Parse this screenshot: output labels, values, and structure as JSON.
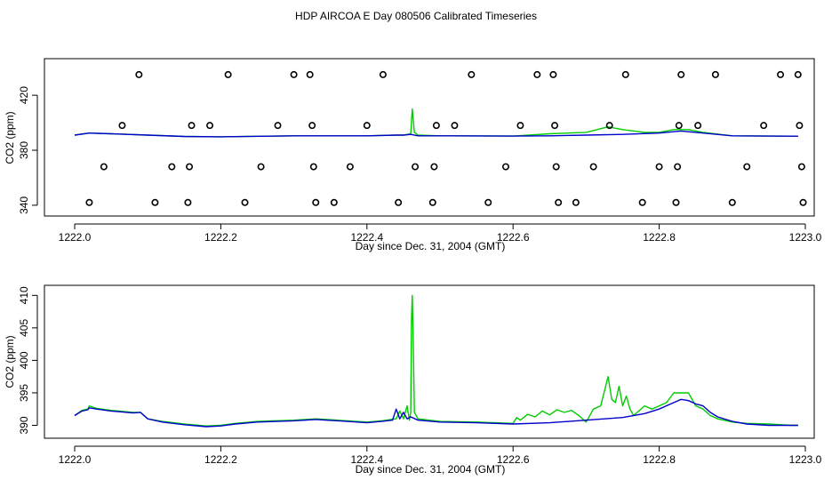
{
  "figure": {
    "title": "HDP AIRCOA E  Day 080506  Calibrated Timeseries"
  },
  "colors": {
    "series_green": "#00cc00",
    "series_blue": "#0000cc",
    "markers": "#000000",
    "axes": "#000000"
  },
  "chart_data": [
    {
      "type": "scatter",
      "xlabel": "Day since Dec. 31, 2004 (GMT)",
      "ylabel": "CO2 (ppm)",
      "xlim": [
        1222.0,
        1223.0
      ],
      "ylim": [
        338,
        444
      ],
      "xticks": [
        1222.0,
        1222.2,
        1222.4,
        1222.6,
        1222.8,
        1223.0
      ],
      "xtick_labels": [
        "1222.0",
        "1222.2",
        "1222.4",
        "1222.6",
        "1222.8",
        "1223.0"
      ],
      "yticks": [
        340,
        380,
        420
      ],
      "ytick_labels": [
        "340",
        "380",
        "420"
      ],
      "grid": false,
      "series": [
        {
          "color": "green",
          "style": "line",
          "x": [
            1222.0,
            1222.02,
            1222.05,
            1222.1,
            1222.15,
            1222.2,
            1222.3,
            1222.4,
            1222.44,
            1222.45,
            1222.46,
            1222.462,
            1222.465,
            1222.47,
            1222.5,
            1222.6,
            1222.65,
            1222.7,
            1222.73,
            1222.75,
            1222.78,
            1222.8,
            1222.82,
            1222.84,
            1222.86,
            1222.9,
            1222.95,
            1222.99
          ],
          "y": [
            391,
            392.5,
            392,
            391,
            390,
            389.8,
            390.5,
            390.5,
            391,
            391,
            392,
            410,
            393,
            391,
            390.5,
            390.3,
            392,
            393,
            397,
            395,
            393,
            393,
            395,
            395,
            393,
            390.5,
            390.3,
            390.2
          ]
        },
        {
          "color": "blue",
          "style": "line",
          "x": [
            1222.0,
            1222.02,
            1222.05,
            1222.1,
            1222.15,
            1222.2,
            1222.3,
            1222.4,
            1222.44,
            1222.45,
            1222.46,
            1222.47,
            1222.5,
            1222.6,
            1222.65,
            1222.7,
            1222.75,
            1222.8,
            1222.83,
            1222.86,
            1222.9,
            1222.95,
            1222.99
          ],
          "y": [
            391,
            392.5,
            392,
            391,
            390,
            389.8,
            390.5,
            390.5,
            391,
            391,
            391.5,
            390.5,
            390.5,
            390.3,
            390.5,
            391,
            391.5,
            392.5,
            394,
            392.5,
            390.5,
            390.3,
            390.2
          ]
        },
        {
          "color": "black",
          "style": "circle-markers",
          "x": [
            1222.02,
            1222.04,
            1222.065,
            1222.088,
            1222.11,
            1222.133,
            1222.155,
            1222.157,
            1222.16,
            1222.185,
            1222.21,
            1222.233,
            1222.255,
            1222.278,
            1222.3,
            1222.322,
            1222.325,
            1222.327,
            1222.33,
            1222.355,
            1222.377,
            1222.4,
            1222.422,
            1222.443,
            1222.466,
            1222.49,
            1222.492,
            1222.495,
            1222.52,
            1222.543,
            1222.566,
            1222.59,
            1222.61,
            1222.633,
            1222.655,
            1222.657,
            1222.659,
            1222.662,
            1222.686,
            1222.71,
            1222.732,
            1222.754,
            1222.777,
            1222.8,
            1222.823,
            1222.825,
            1222.827,
            1222.83,
            1222.853,
            1222.877,
            1222.9,
            1222.92,
            1222.943,
            1222.966,
            1222.99,
            1222.992,
            1222.995,
            1222.997
          ],
          "y": [
            342,
            368,
            398,
            435,
            342,
            368,
            342,
            368,
            398,
            398,
            435,
            342,
            368,
            398,
            435,
            435,
            398,
            368,
            342,
            342,
            368,
            398,
            435,
            342,
            368,
            342,
            368,
            398,
            398,
            435,
            342,
            368,
            398,
            435,
            435,
            398,
            368,
            342,
            342,
            368,
            398,
            435,
            342,
            368,
            342,
            368,
            398,
            435,
            398,
            435,
            342,
            368,
            398,
            435,
            435,
            398,
            368,
            342
          ]
        }
      ]
    },
    {
      "type": "line",
      "xlabel": "Day since Dec. 31, 2004 (GMT)",
      "ylabel": "CO2 (ppm)",
      "xlim": [
        1222.0,
        1223.0
      ],
      "ylim": [
        388.7,
        411.0
      ],
      "xticks": [
        1222.0,
        1222.2,
        1222.4,
        1222.6,
        1222.8,
        1223.0
      ],
      "xtick_labels": [
        "1222.0",
        "1222.2",
        "1222.4",
        "1222.6",
        "1222.8",
        "1223.0"
      ],
      "yticks": [
        390,
        395,
        400,
        405,
        410
      ],
      "ytick_labels": [
        "390",
        "395",
        "400",
        "405",
        "410"
      ],
      "grid": false,
      "series": [
        {
          "color": "green",
          "x": [
            1222.0,
            1222.01,
            1222.018,
            1222.02,
            1222.03,
            1222.05,
            1222.08,
            1222.09,
            1222.1,
            1222.12,
            1222.15,
            1222.18,
            1222.2,
            1222.22,
            1222.25,
            1222.3,
            1222.33,
            1222.36,
            1222.4,
            1222.42,
            1222.44,
            1222.445,
            1222.45,
            1222.455,
            1222.458,
            1222.46,
            1222.461,
            1222.462,
            1222.463,
            1222.465,
            1222.47,
            1222.5,
            1222.55,
            1222.6,
            1222.605,
            1222.61,
            1222.62,
            1222.63,
            1222.64,
            1222.65,
            1222.66,
            1222.67,
            1222.68,
            1222.69,
            1222.7,
            1222.71,
            1222.72,
            1222.73,
            1222.735,
            1222.74,
            1222.745,
            1222.75,
            1222.755,
            1222.76,
            1222.765,
            1222.77,
            1222.78,
            1222.79,
            1222.8,
            1222.81,
            1222.82,
            1222.825,
            1222.84,
            1222.85,
            1222.86,
            1222.87,
            1222.88,
            1222.9,
            1222.92,
            1222.95,
            1222.98,
            1222.99
          ],
          "y": [
            391.5,
            392.3,
            392.5,
            393.0,
            392.6,
            392.3,
            392.0,
            392.0,
            391.0,
            390.6,
            390.2,
            389.9,
            390.0,
            390.3,
            390.6,
            390.8,
            391.0,
            390.8,
            390.5,
            390.7,
            391.0,
            392.2,
            391.0,
            393.0,
            390.8,
            392.0,
            406.0,
            410.0,
            405.0,
            392.0,
            391.0,
            390.6,
            390.5,
            390.3,
            391.2,
            390.8,
            391.7,
            391.3,
            392.2,
            391.6,
            392.4,
            392.0,
            392.3,
            391.5,
            390.5,
            392.5,
            393.0,
            397.5,
            394.0,
            393.5,
            396.0,
            393.0,
            394.5,
            392.5,
            391.5,
            392.0,
            393.0,
            392.5,
            393.0,
            393.5,
            395.0,
            395.0,
            395.0,
            393.0,
            392.5,
            391.5,
            391.0,
            390.5,
            390.3,
            390.2,
            390.0,
            390.0
          ]
        },
        {
          "color": "blue",
          "x": [
            1222.0,
            1222.01,
            1222.018,
            1222.02,
            1222.03,
            1222.05,
            1222.08,
            1222.09,
            1222.1,
            1222.12,
            1222.15,
            1222.18,
            1222.2,
            1222.22,
            1222.25,
            1222.3,
            1222.33,
            1222.36,
            1222.4,
            1222.42,
            1222.435,
            1222.44,
            1222.445,
            1222.45,
            1222.455,
            1222.46,
            1222.47,
            1222.5,
            1222.55,
            1222.6,
            1222.65,
            1222.7,
            1222.75,
            1222.78,
            1222.8,
            1222.82,
            1222.83,
            1222.84,
            1222.85,
            1222.86,
            1222.87,
            1222.88,
            1222.9,
            1222.92,
            1222.95,
            1222.98,
            1222.99
          ],
          "y": [
            391.5,
            392.2,
            392.4,
            392.7,
            392.5,
            392.2,
            391.9,
            392.0,
            391.0,
            390.5,
            390.1,
            389.8,
            389.9,
            390.2,
            390.5,
            390.7,
            390.9,
            390.7,
            390.4,
            390.6,
            390.8,
            392.5,
            391.0,
            392.0,
            391.0,
            391.3,
            390.8,
            390.5,
            390.4,
            390.2,
            390.4,
            390.8,
            391.2,
            391.8,
            392.5,
            393.5,
            394.0,
            393.8,
            393.3,
            393.0,
            392.0,
            391.3,
            390.6,
            390.2,
            390.0,
            390.0,
            390.0
          ]
        }
      ]
    }
  ]
}
